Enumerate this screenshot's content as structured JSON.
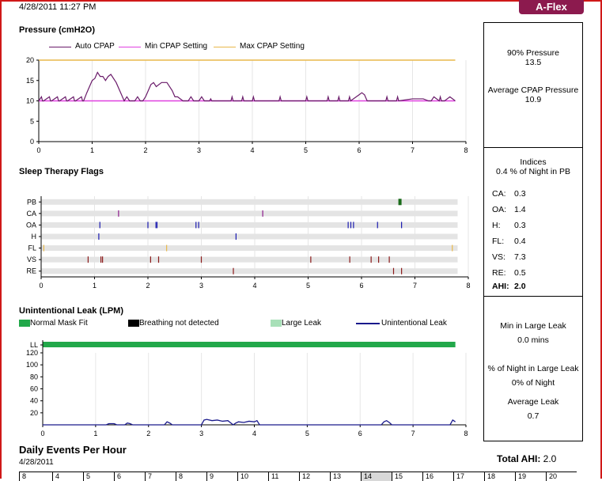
{
  "header": {
    "timestamp": "4/28/2011 11:27 PM",
    "brand": "A-Flex"
  },
  "pressure": {
    "title": "Pressure (cmH2O)",
    "legend": [
      "Auto CPAP",
      "Min CPAP Setting",
      "Max CPAP Setting"
    ],
    "colors": {
      "auto": "#6a1b6a",
      "min": "#e040e0",
      "max": "#e8b84a"
    }
  },
  "flags": {
    "title": "Sleep Therapy Flags"
  },
  "leak": {
    "title": "Unintentional Leak (LPM)",
    "legend": [
      "Normal Mask Fit",
      "Breathing not detected",
      "Large Leak",
      "Unintentional Leak"
    ],
    "colors": {
      "normal": "#22a84a",
      "breathing": "#000000",
      "large": "#a8e0b8",
      "line": "#1a1a8c"
    }
  },
  "side": {
    "p90_label": "90% Pressure",
    "p90_value": "13.5",
    "avg_label": "Average CPAP Pressure",
    "avg_value": "10.9",
    "indices_label": "Indices",
    "pb_note": "0.4 % of Night in PB",
    "indices": [
      {
        "k": "CA:",
        "v": "0.3"
      },
      {
        "k": "OA:",
        "v": "1.4"
      },
      {
        "k": "H:",
        "v": "0.3"
      },
      {
        "k": "FL:",
        "v": "0.4"
      },
      {
        "k": "VS:",
        "v": "7.3"
      },
      {
        "k": "RE:",
        "v": "0.5"
      }
    ],
    "ahi_k": "AHI:",
    "ahi_v": "2.0",
    "min_large_label": "Min in Large Leak",
    "min_large_value": "0.0 mins",
    "pct_large_label": "% of Night in Large Leak",
    "pct_large_value": "0% of Night",
    "avg_leak_label": "Average Leak",
    "avg_leak_value": "0.7"
  },
  "daily": {
    "title": "Daily Events Per Hour",
    "date": "4/28/2011",
    "total_label": "Total AHI:",
    "total_value": "2.0",
    "hours": [
      "8",
      "4",
      "5",
      "6",
      "7",
      "8",
      "9",
      "10",
      "11",
      "12",
      "13",
      "14",
      "15",
      "16",
      "17",
      "18",
      "19",
      "20"
    ]
  },
  "chart_data": [
    {
      "type": "line",
      "title": "Pressure (cmH2O)",
      "xlim": [
        0,
        8
      ],
      "ylim": [
        0,
        20
      ],
      "xticks": [
        0,
        1,
        2,
        3,
        4,
        5,
        6,
        7,
        8
      ],
      "yticks": [
        0,
        5,
        10,
        15,
        20
      ],
      "series": [
        {
          "name": "Auto CPAP",
          "x": [
            0,
            0.05,
            0.07,
            0.09,
            0.2,
            0.22,
            0.24,
            0.35,
            0.37,
            0.39,
            0.5,
            0.52,
            0.54,
            0.65,
            0.67,
            0.69,
            0.8,
            0.82,
            0.84,
            0.9,
            0.95,
            1.0,
            1.05,
            1.1,
            1.15,
            1.2,
            1.25,
            1.3,
            1.35,
            1.45,
            1.55,
            1.6,
            1.65,
            1.7,
            1.75,
            1.8,
            1.85,
            1.9,
            1.95,
            2.0,
            2.05,
            2.1,
            2.15,
            2.2,
            2.3,
            2.4,
            2.5,
            2.55,
            2.6,
            2.7,
            2.75,
            2.8,
            2.85,
            2.9,
            3.0,
            3.05,
            3.1,
            3.2,
            3.22,
            3.24,
            3.6,
            3.62,
            3.64,
            3.8,
            3.82,
            3.84,
            4.0,
            4.02,
            4.04,
            4.5,
            4.52,
            4.54,
            5.0,
            5.02,
            5.04,
            5.4,
            5.42,
            5.44,
            5.6,
            5.62,
            5.64,
            5.8,
            5.82,
            5.84,
            6.0,
            6.05,
            6.1,
            6.15,
            6.5,
            6.52,
            6.54,
            6.7,
            6.72,
            6.74,
            7.0,
            7.1,
            7.2,
            7.3,
            7.35,
            7.4,
            7.5,
            7.52,
            7.54,
            7.6,
            7.7,
            7.8
          ],
          "y": [
            10,
            11,
            10,
            10,
            11,
            10,
            10,
            11,
            10,
            10,
            11,
            10,
            10,
            11,
            10,
            10,
            11,
            10,
            10,
            12,
            13.5,
            15,
            15.5,
            17,
            16,
            16,
            15,
            16,
            16.5,
            14.5,
            11.5,
            10,
            11,
            10,
            10,
            10,
            11,
            10,
            10,
            11,
            12.5,
            14,
            14.5,
            13.5,
            14.5,
            14.5,
            12.5,
            11,
            11,
            10,
            10,
            10,
            11,
            10,
            10,
            11,
            10,
            10,
            10.5,
            10,
            10,
            11,
            10,
            10,
            11,
            10,
            10,
            11,
            10,
            10,
            11,
            10,
            10,
            11,
            10,
            10,
            11,
            10,
            10,
            11,
            10,
            10,
            11,
            10,
            11.5,
            12,
            11.5,
            10,
            10,
            11,
            10,
            10,
            11,
            10,
            10.5,
            10.5,
            10.5,
            10,
            10,
            11,
            10,
            11,
            10,
            10,
            11,
            10
          ]
        },
        {
          "name": "Min CPAP Setting",
          "x": [
            0,
            7.8
          ],
          "y": [
            10,
            10
          ]
        },
        {
          "name": "Max CPAP Setting",
          "x": [
            0,
            7.8
          ],
          "y": [
            20,
            20
          ]
        }
      ]
    },
    {
      "type": "scatter",
      "title": "Sleep Therapy Flags",
      "xlim": [
        0,
        8
      ],
      "xticks": [
        0,
        1,
        2,
        3,
        4,
        5,
        6,
        7,
        8
      ],
      "categories": [
        "PB",
        "CA",
        "OA",
        "H",
        "FL",
        "VS",
        "RE"
      ],
      "events": {
        "PB": [
          6.72
        ],
        "CA": [
          1.45,
          4.15
        ],
        "OA": [
          1.1,
          2.0,
          2.15,
          2.17,
          2.9,
          2.95,
          5.75,
          5.8,
          5.85,
          6.3,
          6.75
        ],
        "H": [
          1.08,
          3.65
        ],
        "FL": [
          0.05,
          2.35,
          7.7
        ],
        "VS": [
          0.88,
          1.12,
          1.15,
          2.05,
          2.2,
          3.0,
          5.05,
          5.78,
          6.18,
          6.32,
          6.52
        ],
        "RE": [
          3.6,
          6.6,
          6.75
        ]
      },
      "colors": {
        "PB": "#1a6b1a",
        "CA": "#8c1a8c",
        "OA": "#1a1ab0",
        "H": "#1a1ab0",
        "FL": "#e8b84a",
        "VS": "#8c1a1a",
        "RE": "#8c1a1a"
      }
    },
    {
      "type": "line",
      "title": "Unintentional Leak (LPM)",
      "xlim": [
        0,
        8
      ],
      "ylim": [
        0,
        120
      ],
      "xticks": [
        0,
        1,
        2,
        3,
        4,
        5,
        6,
        7,
        8
      ],
      "yticks": [
        20,
        40,
        60,
        80,
        100,
        120
      ],
      "series": [
        {
          "name": "Unintentional Leak",
          "x": [
            0,
            1.2,
            1.25,
            1.35,
            1.4,
            1.55,
            1.6,
            1.65,
            1.7,
            2.3,
            2.35,
            2.4,
            2.45,
            3.0,
            3.05,
            3.1,
            3.2,
            3.3,
            3.4,
            3.5,
            3.6,
            3.65,
            3.7,
            3.8,
            3.9,
            4.0,
            4.05,
            4.1,
            6.4,
            6.45,
            6.5,
            6.55,
            6.6,
            7.7,
            7.75,
            7.8
          ],
          "y": [
            0,
            0,
            2,
            2,
            0,
            0,
            3,
            2,
            0,
            0,
            5,
            3,
            0,
            0,
            8,
            9,
            7,
            8,
            6,
            7,
            0,
            3,
            5,
            4,
            6,
            5,
            7,
            0,
            0,
            5,
            7,
            4,
            0,
            0,
            8,
            5
          ]
        }
      ],
      "bands": {
        "Normal Mask Fit": [
          0,
          7.8
        ]
      }
    }
  ]
}
